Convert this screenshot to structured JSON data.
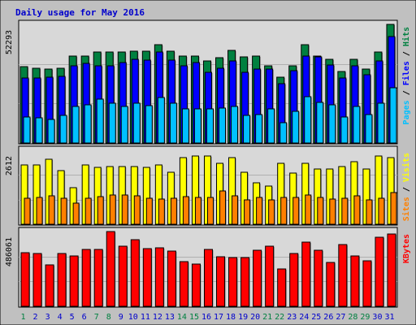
{
  "chart_data": {
    "type": "bar",
    "title": "Daily usage for May 2016",
    "categories": [
      "1",
      "2",
      "3",
      "4",
      "5",
      "6",
      "7",
      "8",
      "9",
      "10",
      "11",
      "12",
      "13",
      "14",
      "15",
      "16",
      "17",
      "18",
      "19",
      "20",
      "21",
      "22",
      "23",
      "24",
      "25",
      "26",
      "27",
      "28",
      "29",
      "30",
      "31"
    ],
    "weekend_days": [
      "1",
      "7",
      "8",
      "14",
      "15",
      "21",
      "22",
      "28",
      "29"
    ],
    "colors": {
      "background": "#c0c0c0",
      "panel": "#d8d8d8",
      "title": "#0000cc",
      "hits": "#008040",
      "files": "#0000ff",
      "pages": "#00c0ff",
      "visits": "#ffff00",
      "sites": "#ff8000",
      "kbytes": "#ff0000",
      "weekday_label": "#0000cc",
      "weekend_label": "#008040"
    },
    "panels": [
      {
        "id": "hits-files-pages",
        "max_label": "52293",
        "ylim": [
          0,
          52293
        ],
        "legend": [
          {
            "text": "Pages",
            "color": "#00c0ff"
          },
          {
            "text": " / ",
            "color": "#000000"
          },
          {
            "text": "Files",
            "color": "#0000ff"
          },
          {
            "text": " / ",
            "color": "#000000"
          },
          {
            "text": "Hits",
            "color": "#008040"
          }
        ],
        "series": [
          {
            "name": "Hits",
            "color": "#008040",
            "values": [
              33500,
              33000,
              32500,
              33000,
              38500,
              38500,
              40000,
              40000,
              40000,
              40500,
              40500,
              43500,
              40500,
              38500,
              38500,
              36000,
              37500,
              41000,
              38000,
              38500,
              34000,
              29000,
              34000,
              43500,
              38500,
              37000,
              31500,
              37000,
              32500,
              40000,
              52293
            ]
          },
          {
            "name": "Files",
            "color": "#0000ff",
            "values": [
              28500,
              28500,
              29000,
              29500,
              34000,
              35000,
              34000,
              34000,
              35500,
              37000,
              36500,
              40000,
              36500,
              34000,
              35500,
              31000,
              33000,
              36000,
              31000,
              32500,
              32500,
              26000,
              32000,
              38500,
              38000,
              34500,
              28500,
              34000,
              30000,
              36000,
              47000
            ]
          },
          {
            "name": "Pages",
            "color": "#00c0ff",
            "values": [
              11500,
              11000,
              10500,
              12000,
              16000,
              17000,
              19500,
              17500,
              16000,
              17500,
              16500,
              20000,
              17500,
              15000,
              15000,
              15000,
              15500,
              16000,
              12000,
              12500,
              15000,
              9000,
              14000,
              20500,
              18000,
              17000,
              11500,
              16000,
              12500,
              17500,
              24500
            ]
          }
        ]
      },
      {
        "id": "visits-sites",
        "max_label": "2612",
        "ylim": [
          0,
          2612
        ],
        "legend": [
          {
            "text": "Sites",
            "color": "#ff8000"
          },
          {
            "text": " / ",
            "color": "#000000"
          },
          {
            "text": "Visits",
            "color": "#ffff00"
          }
        ],
        "series": [
          {
            "name": "Visits",
            "color": "#ffff00",
            "values": [
              2100,
              2100,
              2300,
              1900,
              1300,
              2100,
              2000,
              2050,
              2050,
              2050,
              2000,
              2100,
              1850,
              2350,
              2400,
              2400,
              2150,
              2350,
              1850,
              1450,
              1350,
              2150,
              1800,
              2150,
              1950,
              1950,
              2050,
              2200,
              1950,
              2400,
              2350
            ]
          },
          {
            "name": "Sites",
            "color": "#ff8000",
            "values": [
              920,
              950,
              1000,
              920,
              760,
              930,
              980,
              1040,
              1020,
              1000,
              920,
              900,
              930,
              970,
              960,
              960,
              1180,
              1000,
              860,
              950,
              850,
              940,
              960,
              1030,
              940,
              900,
              930,
              1000,
              850,
              920,
              1120
            ]
          }
        ]
      },
      {
        "id": "kbytes",
        "max_label": "486061",
        "ylim": [
          0,
          486061
        ],
        "legend": [
          {
            "text": "KBytes",
            "color": "#ff0000"
          }
        ],
        "series": [
          {
            "name": "KBytes",
            "color": "#ff0000",
            "values": [
              348000,
              342000,
              270000,
              345000,
              327000,
              370000,
              370000,
              486061,
              390000,
              432000,
              373000,
              382000,
              357000,
              293000,
              275000,
              368000,
              323000,
              315000,
              318000,
              364000,
              389000,
              245000,
              341000,
              420000,
              365000,
              285000,
              400000,
              330000,
              296000,
              450000,
              471000
            ]
          }
        ]
      }
    ]
  }
}
